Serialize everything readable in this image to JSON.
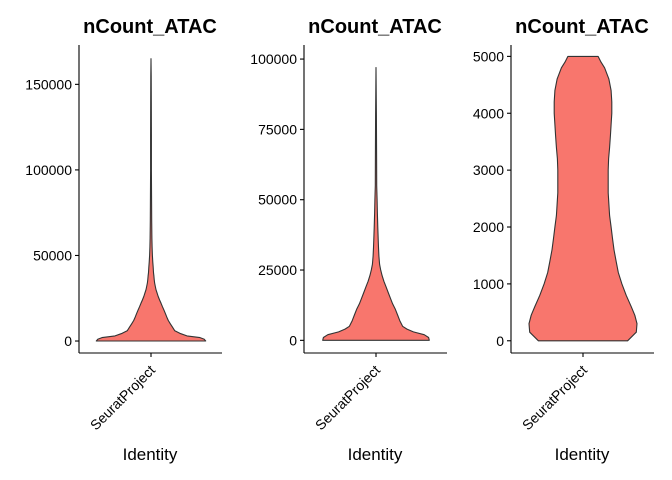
{
  "chart_data": [
    {
      "type": "violin",
      "title": "nCount_ATAC",
      "xlabel": "Identity",
      "ylabel": "",
      "categories": [
        "SeuratProject"
      ],
      "ylim": [
        -7000,
        173000
      ],
      "yticks": [
        0,
        50000,
        100000,
        150000
      ],
      "ytick_labels": [
        "0",
        "50000",
        "100000",
        "150000"
      ],
      "fill_color": "#F8766D",
      "outline_color": "#333333",
      "density_profile": {
        "y": [
          0,
          1000,
          2000,
          3000,
          4500,
          6000,
          8000,
          10000,
          12000,
          14000,
          16000,
          18000,
          20000,
          22000,
          24000,
          26000,
          28000,
          30000,
          32000,
          34000,
          36000,
          38000,
          40000,
          43000,
          46000,
          50000,
          55000,
          60000,
          70000,
          80000,
          100000,
          120000,
          140000,
          155000,
          165000
        ],
        "half_width": [
          0.76,
          0.74,
          0.68,
          0.5,
          0.4,
          0.33,
          0.3,
          0.27,
          0.24,
          0.22,
          0.2,
          0.18,
          0.16,
          0.14,
          0.12,
          0.1,
          0.085,
          0.07,
          0.06,
          0.05,
          0.045,
          0.04,
          0.035,
          0.03,
          0.025,
          0.02,
          0.015,
          0.012,
          0.01,
          0.008,
          0.006,
          0.005,
          0.004,
          0.003,
          0
        ]
      }
    },
    {
      "type": "violin",
      "title": "nCount_ATAC",
      "xlabel": "Identity",
      "ylabel": "",
      "categories": [
        "SeuratProject"
      ],
      "ylim": [
        -4500,
        105000
      ],
      "yticks": [
        0,
        25000,
        50000,
        75000,
        100000
      ],
      "ytick_labels": [
        "0",
        "25000",
        "50000",
        "75000",
        "100000"
      ],
      "fill_color": "#F8766D",
      "outline_color": "#333333",
      "density_profile": {
        "y": [
          0,
          1000,
          2000,
          3000,
          4000,
          5000,
          7000,
          9000,
          11000,
          13000,
          15000,
          17000,
          19000,
          21000,
          23000,
          25000,
          27000,
          30000,
          33000,
          36000,
          40000,
          45000,
          50000,
          55000,
          65000,
          80000,
          97000
        ],
        "half_width": [
          0.74,
          0.73,
          0.67,
          0.52,
          0.43,
          0.37,
          0.33,
          0.3,
          0.27,
          0.23,
          0.2,
          0.17,
          0.14,
          0.11,
          0.085,
          0.065,
          0.05,
          0.04,
          0.035,
          0.03,
          0.025,
          0.02,
          0.015,
          0.01,
          0.008,
          0.005,
          0
        ]
      }
    },
    {
      "type": "violin",
      "title": "nCount_ATAC",
      "xlabel": "Identity",
      "ylabel": "",
      "categories": [
        "SeuratProject"
      ],
      "ylim": [
        -215,
        5200
      ],
      "yticks": [
        0,
        1000,
        2000,
        3000,
        4000,
        5000
      ],
      "ytick_labels": [
        "0",
        "1000",
        "2000",
        "3000",
        "4000",
        "5000"
      ],
      "fill_color": "#F8766D",
      "outline_color": "#333333",
      "density_profile": {
        "y": [
          0,
          150,
          300,
          450,
          600,
          800,
          1000,
          1200,
          1400,
          1600,
          1800,
          2000,
          2200,
          2400,
          2600,
          2800,
          3000,
          3200,
          3400,
          3600,
          3800,
          4000,
          4200,
          4400,
          4600,
          4800,
          4900,
          5000
        ],
        "half_width": [
          0.62,
          0.74,
          0.75,
          0.72,
          0.67,
          0.6,
          0.54,
          0.49,
          0.46,
          0.43,
          0.41,
          0.39,
          0.37,
          0.36,
          0.35,
          0.35,
          0.35,
          0.355,
          0.37,
          0.38,
          0.39,
          0.4,
          0.4,
          0.39,
          0.36,
          0.3,
          0.25,
          0.21
        ]
      }
    }
  ]
}
